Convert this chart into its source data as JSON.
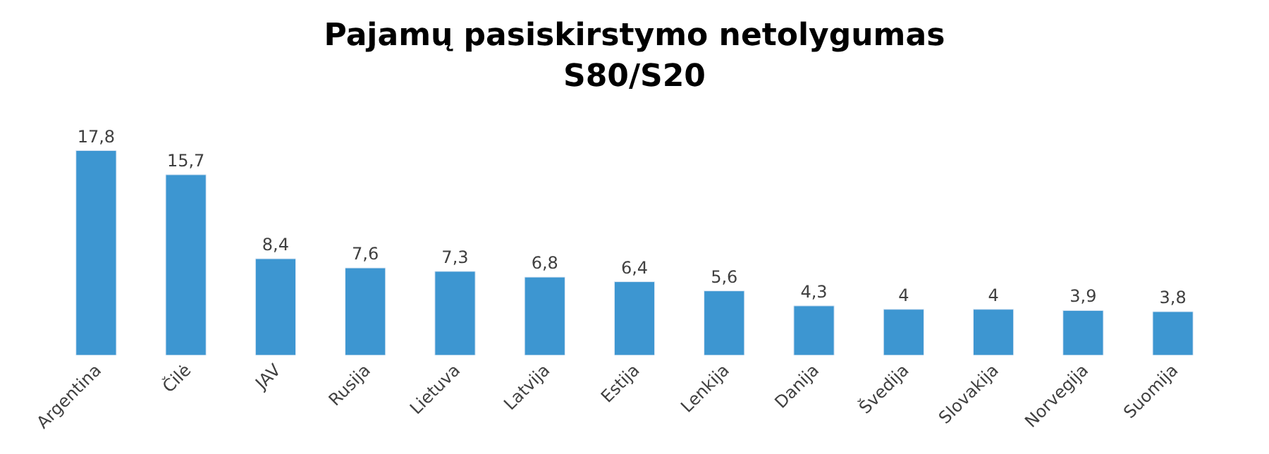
{
  "chart_data": {
    "type": "bar",
    "title": "Pajamų pasiskirstymo netolygumas\nS80/S20",
    "categories": [
      "Argentina",
      "Čilė",
      "JAV",
      "Rusija",
      "Lietuva",
      "Latvija",
      "Estija",
      "Lenkija",
      "Danija",
      "Švedija",
      "Slovakija",
      "Norvegija",
      "Suomija"
    ],
    "values": [
      17.8,
      15.7,
      8.4,
      7.6,
      7.3,
      6.8,
      6.4,
      5.6,
      4.3,
      4,
      4,
      3.9,
      3.8
    ],
    "value_labels": [
      "17,8",
      "15,7",
      "8,4",
      "7,6",
      "7,3",
      "6,8",
      "6,4",
      "5,6",
      "4,3",
      "4",
      "4",
      "3,9",
      "3,8"
    ],
    "color": "#3d96d1"
  }
}
